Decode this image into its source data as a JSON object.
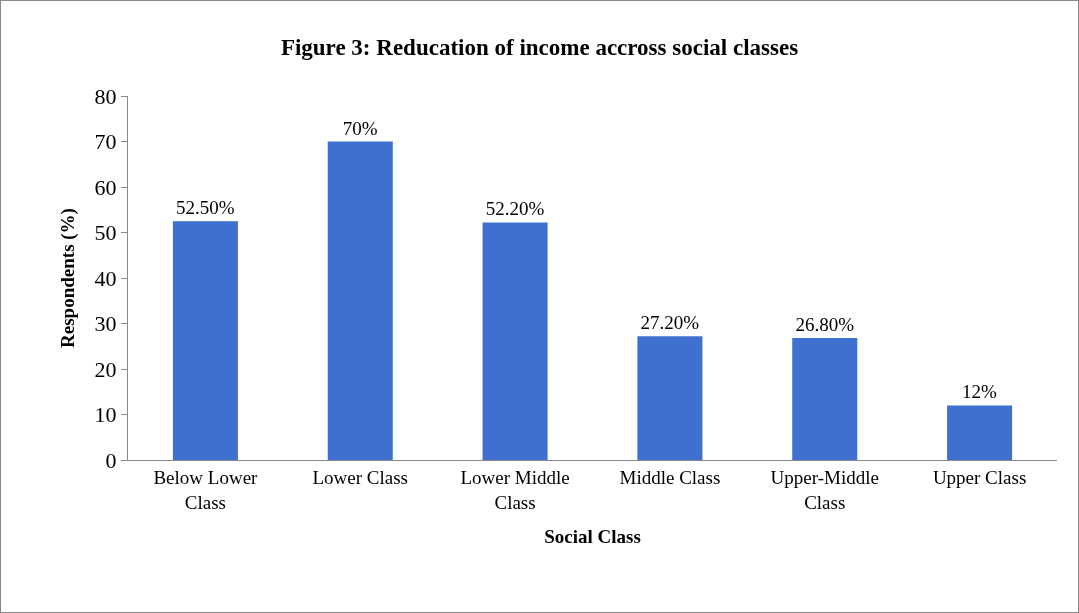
{
  "chart_data": {
    "type": "bar",
    "title": "Figure 3: Reducation of income accross social classes",
    "xlabel": "Social Class",
    "ylabel": "Respondents (%)",
    "categories": [
      "Below Lower Class",
      "Lower Class",
      "Lower Middle Class",
      "Middle Class",
      "Upper-Middle Class",
      "Upper Class"
    ],
    "values": [
      52.5,
      70,
      52.2,
      27.2,
      26.8,
      12
    ],
    "value_labels": [
      "52.50%",
      "70%",
      "52.20%",
      "27.20%",
      "26.80%",
      "12%"
    ],
    "color": "#3f6fcf",
    "ylim": [
      0,
      80
    ],
    "yticks": [
      0,
      10,
      20,
      30,
      40,
      50,
      60,
      70,
      80
    ]
  }
}
